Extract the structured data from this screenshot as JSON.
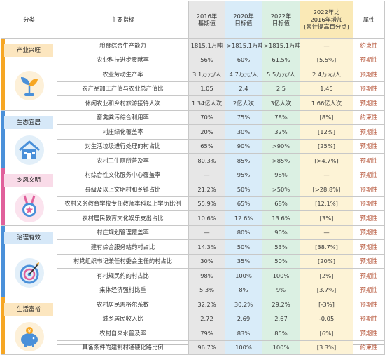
{
  "header": {
    "category": "分类",
    "indicator": "主要指标",
    "v2016": [
      "2016年",
      "基期值"
    ],
    "v2020": [
      "2020年",
      "目标值"
    ],
    "v2022": [
      "2022年",
      "目标值"
    ],
    "increase": [
      "2022年比",
      "2016年增加",
      "[累计提高百分点]"
    ],
    "attribute": "属性"
  },
  "categories": [
    {
      "name": "产业兴旺",
      "icon": "sprout-icon",
      "color": "#f6a623"
    },
    {
      "name": "生态宜居",
      "icon": "house-icon",
      "color": "#4a90d9"
    },
    {
      "name": "乡风文明",
      "icon": "medal-icon",
      "color": "#e0609b"
    },
    {
      "name": "治理有效",
      "icon": "target-icon",
      "color": "#4a90d9"
    },
    {
      "name": "生活富裕",
      "icon": "piggy-bank-icon",
      "color": "#f6a623"
    }
  ],
  "rows": [
    [
      "粮食综合生产能力",
      "1815.1万吨",
      ">1815.1万吨",
      ">1815.1万吨",
      "—",
      "约束性"
    ],
    [
      "农业科技进步贡献率",
      "56%",
      "60%",
      "61.5%",
      "[5.5%]",
      "预期性"
    ],
    [
      "农业劳动生产率",
      "3.1万元/人",
      "4.7万元/人",
      "5.5万元/人",
      "2.4万元/人",
      "预期性"
    ],
    [
      "农产品加工产值与农业总产值比",
      "1.05",
      "2.4",
      "2.5",
      "1.45",
      "预期性"
    ],
    [
      "休闲农业和乡村旅游接待人次",
      "1.34亿人次",
      "2亿人次",
      "3亿人次",
      "1.66亿人次",
      "预期性"
    ],
    [
      "畜禽粪污综合利用率",
      "70%",
      "75%",
      "78%",
      "[8%]",
      "约束性"
    ],
    [
      "村庄绿化覆盖率",
      "20%",
      "30%",
      "32%",
      "[12%]",
      "预期性"
    ],
    [
      "对生活垃圾进行处理的村占比",
      "65%",
      "90%",
      ">90%",
      "[25%]",
      "预期性"
    ],
    [
      "农村卫生厕所普及率",
      "80.3%",
      "85%",
      ">85%",
      "[>4.7%]",
      "预期性"
    ],
    [
      "村综合性文化服务中心覆盖率",
      "—",
      "95%",
      "98%",
      "—",
      "预期性"
    ],
    [
      "县级及以上文明村和乡镇占比",
      "21.2%",
      "50%",
      ">50%",
      "[>28.8%]",
      "预期性"
    ],
    [
      "农村义务教育学校专任教师本科以上学历比例",
      "55.9%",
      "65%",
      "68%",
      "[12.1%]",
      "预期性"
    ],
    [
      "农村居民教育文化娱乐支出占比",
      "10.6%",
      "12.6%",
      "13.6%",
      "[3%]",
      "预期性"
    ],
    [
      "村庄规划管理覆盖率",
      "—",
      "80%",
      "90%",
      "—",
      "预期性"
    ],
    [
      "建有综合服务站的村占比",
      "14.3%",
      "50%",
      "53%",
      "[38.7%]",
      "预期性"
    ],
    [
      "村党组织书记兼任村委会主任的村占比",
      "30%",
      "35%",
      "50%",
      "[20%]",
      "预期性"
    ],
    [
      "有村规民约的村占比",
      "98%",
      "100%",
      "100%",
      "[2%]",
      "预期性"
    ],
    [
      "集体经济强村比重",
      "5.3%",
      "8%",
      "9%",
      "[3.7%]",
      "预期性"
    ],
    [
      "农村居民恩格尔系数",
      "32.2%",
      "30.2%",
      "29.2%",
      "[-3%]",
      "预期性"
    ],
    [
      "城乡居民收入比",
      "2.72",
      "2.69",
      "2.67",
      "-0.05",
      "预期性"
    ],
    [
      "农村自来水普及率",
      "79%",
      "83%",
      "85%",
      "[6%]",
      "预期性"
    ],
    [
      "具备条件的建制村通硬化路比例",
      "96.7%",
      "100%",
      "100%",
      "[3.3%]",
      "约束性"
    ]
  ],
  "groups": [
    {
      "category": 0,
      "start": 0,
      "count": 5
    },
    {
      "category": 1,
      "start": 5,
      "count": 4
    },
    {
      "category": 2,
      "start": 9,
      "count": 4
    },
    {
      "category": 3,
      "start": 13,
      "count": 5
    },
    {
      "category": 4,
      "start": 18,
      "count": 4
    }
  ]
}
